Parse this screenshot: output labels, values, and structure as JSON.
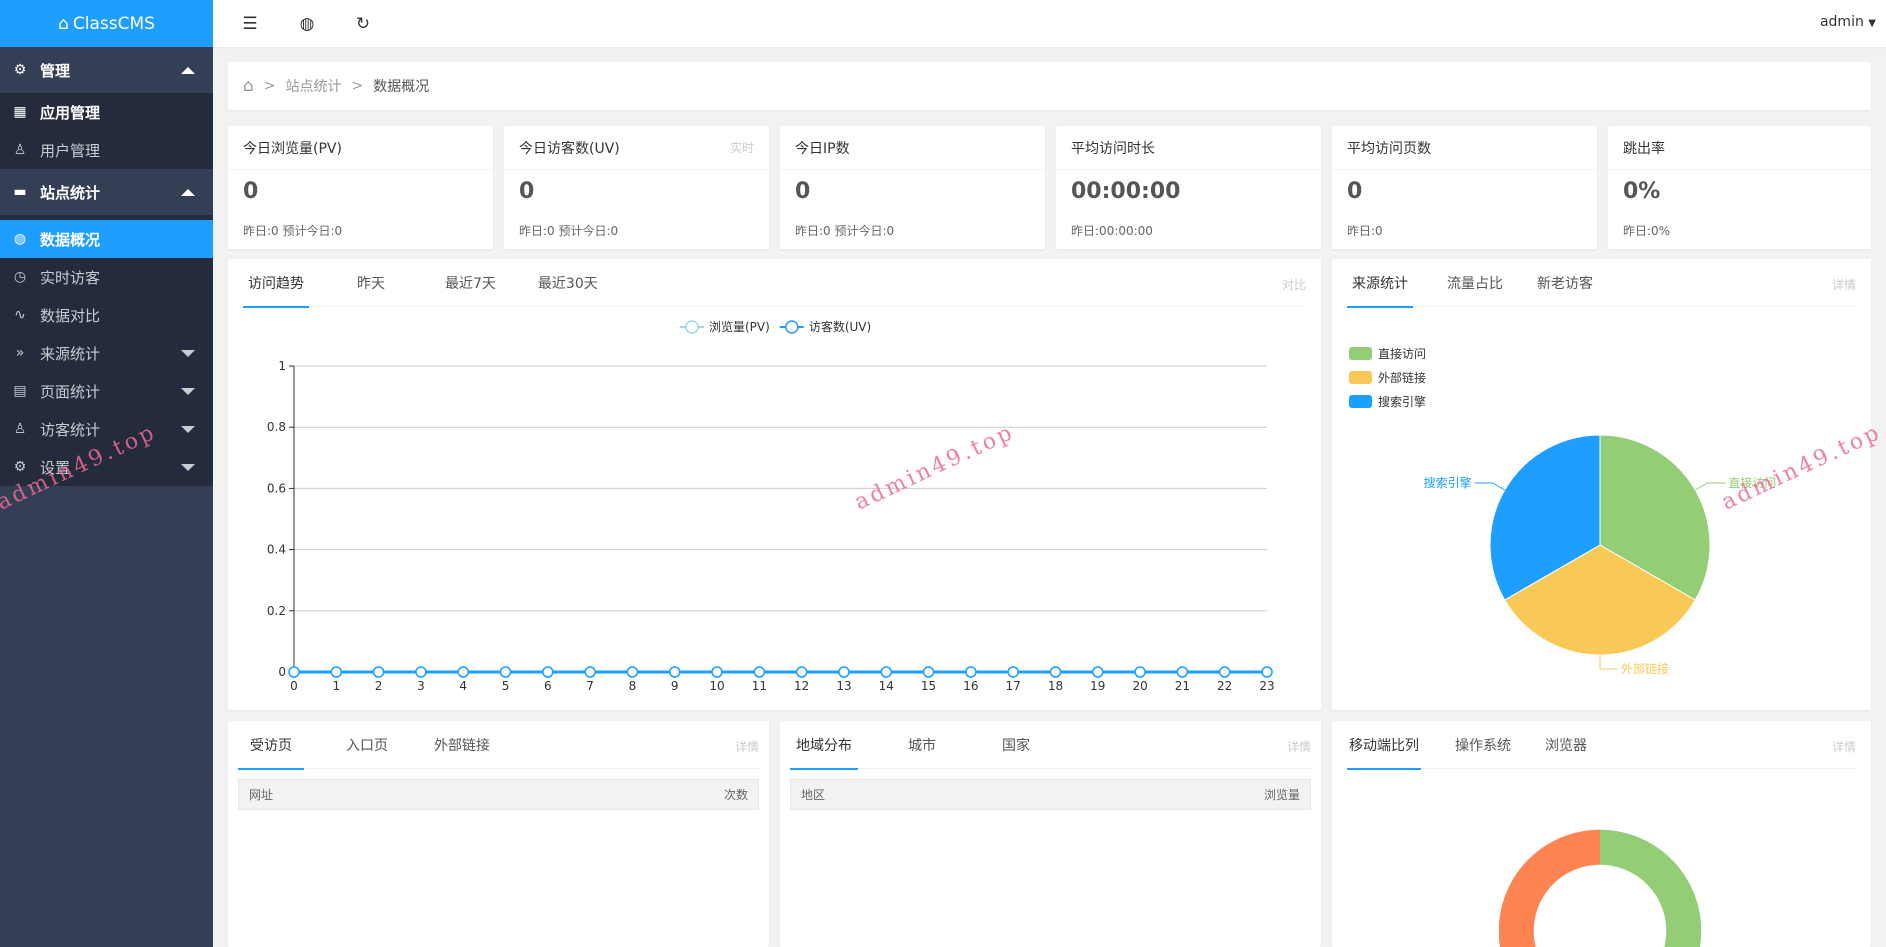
{
  "app": {
    "title": "ClassCMS",
    "user": "admin"
  },
  "header": {
    "icons": [
      "menu-fold-icon",
      "globe-icon",
      "refresh-icon"
    ]
  },
  "sidebar": {
    "groups": [
      {
        "label": "管理",
        "icon": "gear-icon",
        "expanded": true,
        "items": [
          {
            "label": "应用管理",
            "icon": "apps-icon"
          },
          {
            "label": "用户管理",
            "icon": "user-icon"
          }
        ]
      },
      {
        "label": "站点统计",
        "icon": "monitor-icon",
        "expanded": true,
        "items": [
          {
            "label": "数据概况",
            "icon": "globe-icon",
            "active": true
          },
          {
            "label": "实时访客",
            "icon": "clock-icon"
          },
          {
            "label": "数据对比",
            "icon": "pulse-icon"
          },
          {
            "label": "来源统计",
            "icon": "double-chevron-icon",
            "has_children": true
          },
          {
            "label": "页面统计",
            "icon": "layout-icon",
            "has_children": true
          },
          {
            "label": "访客统计",
            "icon": "users-icon",
            "has_children": true
          },
          {
            "label": "设置",
            "icon": "gear-icon",
            "has_children": true
          }
        ]
      }
    ]
  },
  "breadcrumb": {
    "items": [
      "站点统计",
      "数据概况"
    ],
    "sep": ">"
  },
  "stats": [
    {
      "title": "今日浏览量(PV)",
      "value": "0",
      "sub": "昨日:0 预计今日:0",
      "tag": ""
    },
    {
      "title": "今日访客数(UV)",
      "value": "0",
      "sub": "昨日:0 预计今日:0",
      "tag": "实时"
    },
    {
      "title": "今日IP数",
      "value": "0",
      "sub": "昨日:0 预计今日:0",
      "tag": ""
    },
    {
      "title": "平均访问时长",
      "value": "00:00:00",
      "sub": "昨日:00:00:00",
      "tag": ""
    },
    {
      "title": "平均访问页数",
      "value": "0",
      "sub": "昨日:0",
      "tag": ""
    },
    {
      "title": "跳出率",
      "value": "0%",
      "sub": "昨日:0%",
      "tag": ""
    }
  ],
  "trend": {
    "tabs": [
      "访问趋势",
      "昨天",
      "最近7天",
      "最近30天"
    ],
    "more": "对比"
  },
  "source": {
    "tabs": [
      "来源统计",
      "流量占比",
      "新老访客"
    ],
    "more": "详情"
  },
  "pages": {
    "tabs": [
      "受访页",
      "入口页",
      "外部链接"
    ],
    "more": "详情",
    "columns": [
      "网址",
      "次数"
    ]
  },
  "region": {
    "tabs": [
      "地域分布",
      "城市",
      "国家"
    ],
    "more": "详情",
    "columns": [
      "地区",
      "浏览量"
    ]
  },
  "device": {
    "tabs": [
      "移动端比列",
      "操作系统",
      "浏览器"
    ],
    "more": "详情"
  },
  "watermark": "admin49.top",
  "chart_data": [
    {
      "type": "line",
      "x": [
        0,
        1,
        2,
        3,
        4,
        5,
        6,
        7,
        8,
        9,
        10,
        11,
        12,
        13,
        14,
        15,
        16,
        17,
        18,
        19,
        20,
        21,
        22,
        23
      ],
      "series": [
        {
          "name": "浏览量(PV)",
          "color": "#9ed8ee",
          "values": [
            0,
            0,
            0,
            0,
            0,
            0,
            0,
            0,
            0,
            0,
            0,
            0,
            0,
            0,
            0,
            0,
            0,
            0,
            0,
            0,
            0,
            0,
            0,
            0
          ]
        },
        {
          "name": "访客数(UV)",
          "color": "#1e9fff",
          "values": [
            0,
            0,
            0,
            0,
            0,
            0,
            0,
            0,
            0,
            0,
            0,
            0,
            0,
            0,
            0,
            0,
            0,
            0,
            0,
            0,
            0,
            0,
            0,
            0
          ]
        }
      ],
      "ylim": [
        0,
        1
      ],
      "yticks": [
        "0",
        "0.2",
        "0.4",
        "0.6",
        "0.8",
        "1"
      ],
      "grid": true,
      "legend": "top-center"
    },
    {
      "type": "pie",
      "labels": [
        "直接访问",
        "外部链接",
        "搜索引擎"
      ],
      "colors": [
        "#93cd76",
        "#f8c956",
        "#1e9fff"
      ],
      "values": [
        1,
        1,
        1
      ],
      "legend": "top-left"
    },
    {
      "type": "pie",
      "donut": true,
      "colors": [
        "#93cd76",
        "#fe8552"
      ],
      "values": [
        1,
        1
      ]
    }
  ]
}
